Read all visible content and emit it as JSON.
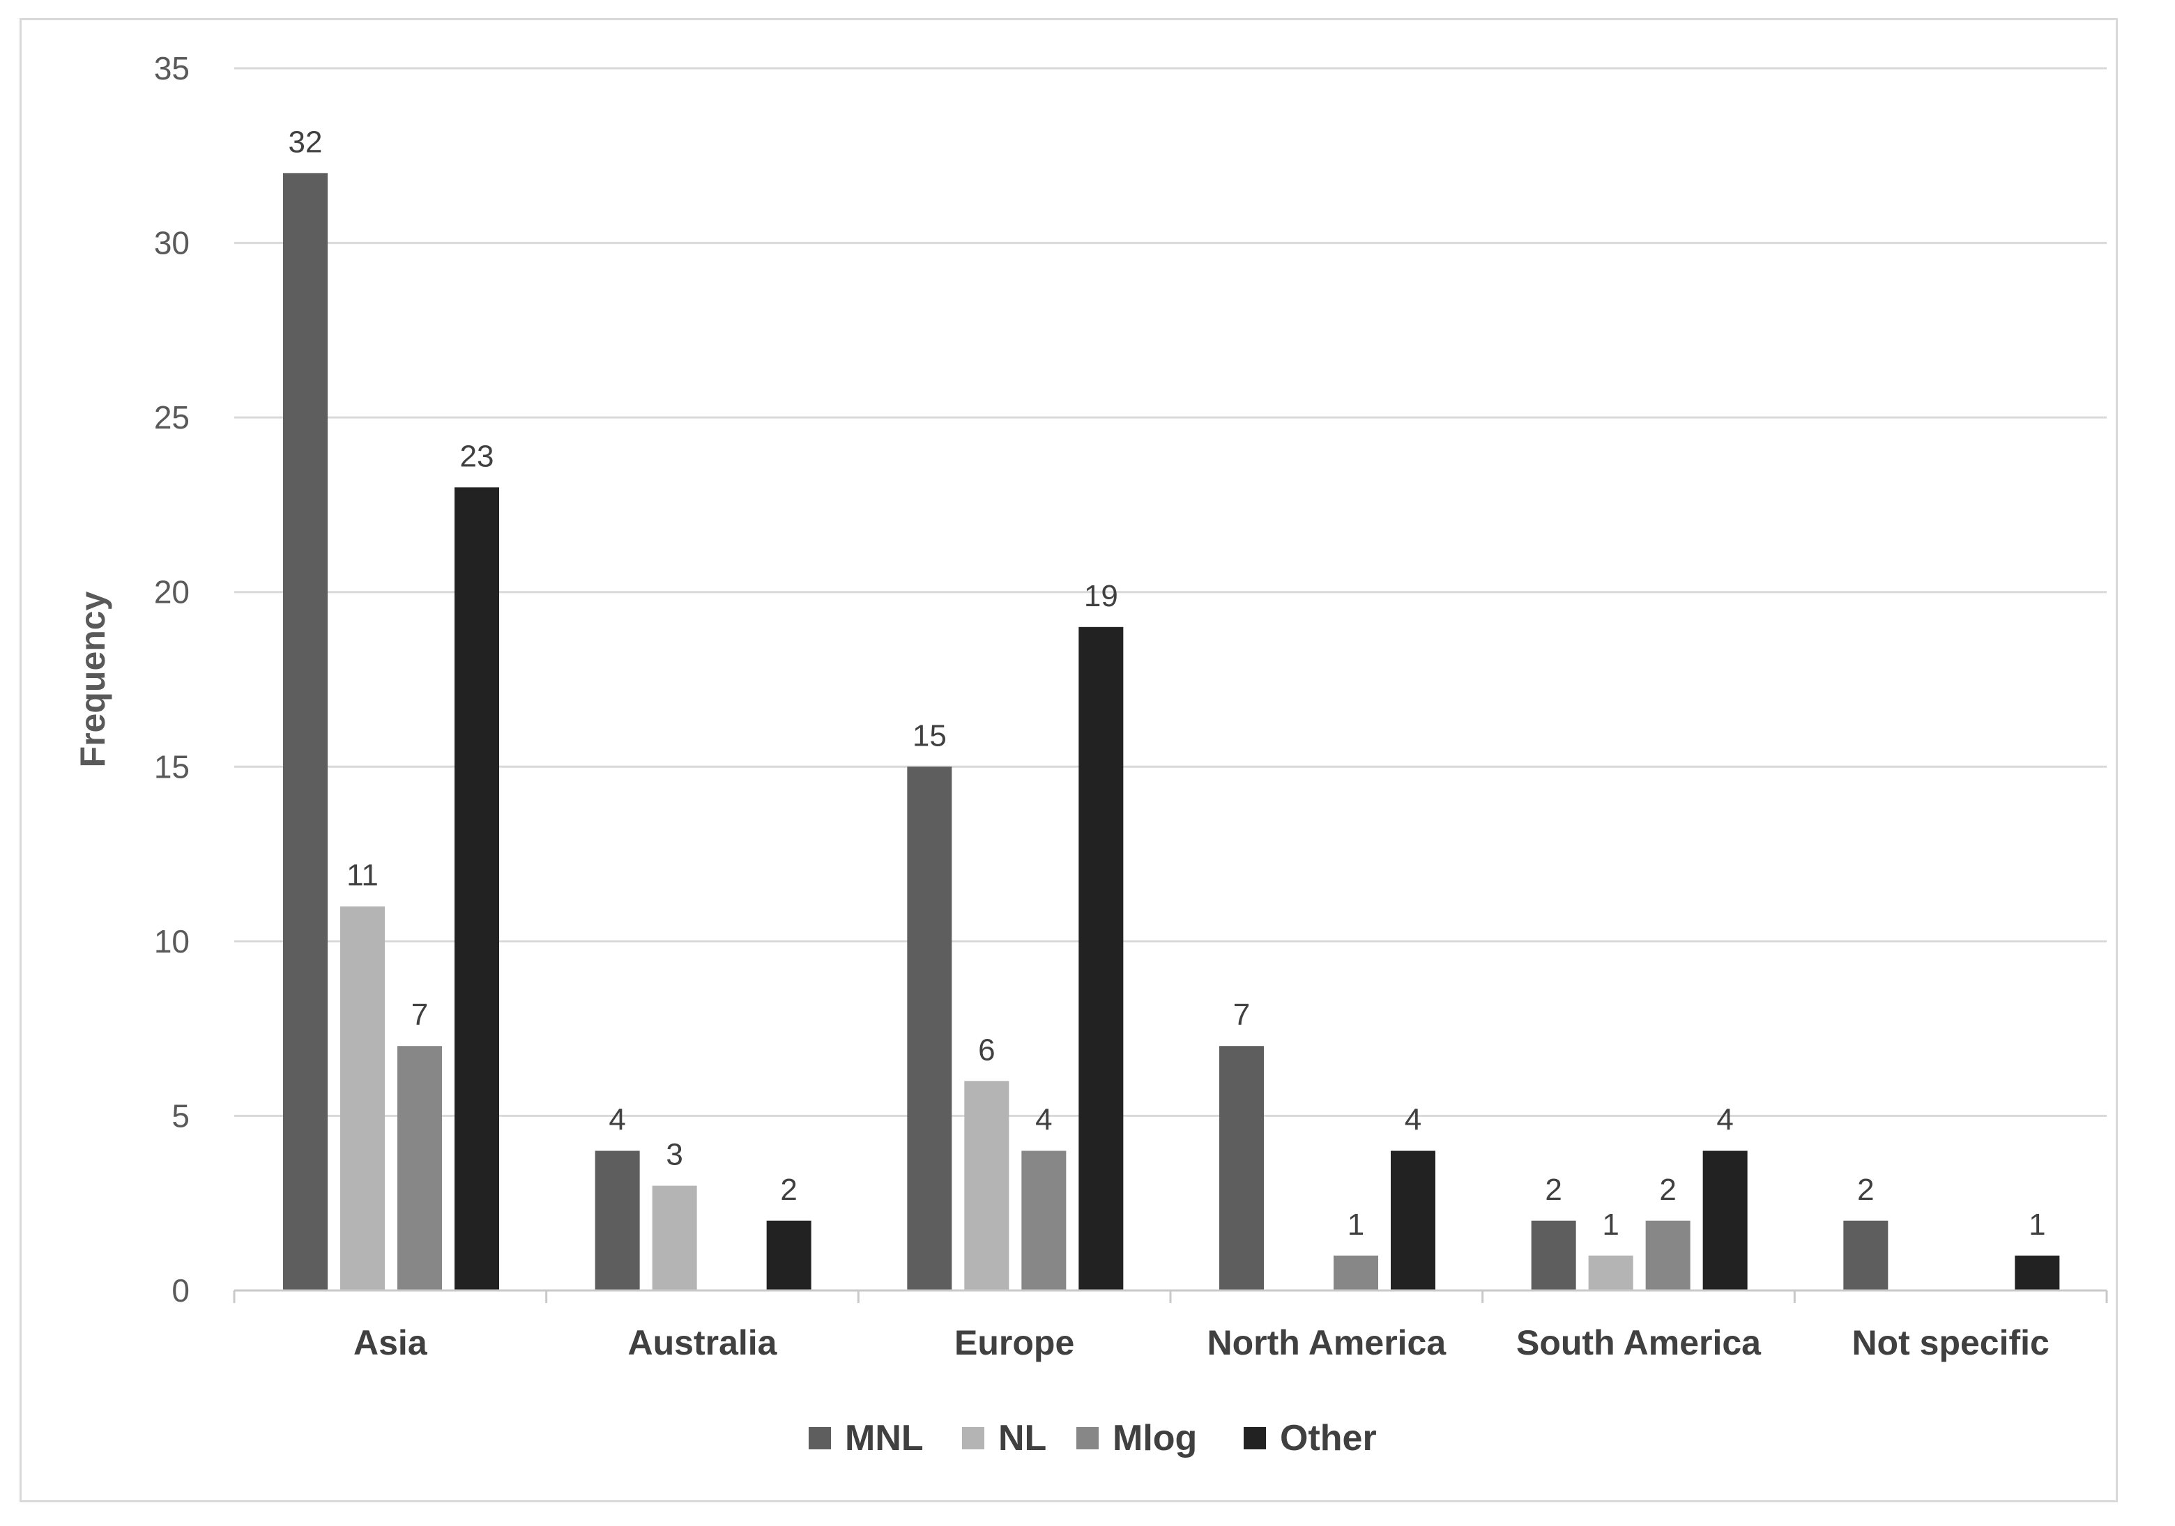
{
  "chart_data": {
    "type": "bar",
    "categories": [
      "Asia",
      "Australia",
      "Europe",
      "North America",
      "South America",
      "Not specific"
    ],
    "series": [
      {
        "name": "MNL",
        "color": "#5e5e5e",
        "values": [
          32,
          4,
          15,
          7,
          2,
          2
        ]
      },
      {
        "name": "NL",
        "color": "#b4b4b4",
        "values": [
          11,
          3,
          6,
          null,
          1,
          null
        ]
      },
      {
        "name": "Mlog",
        "color": "#878787",
        "values": [
          7,
          null,
          4,
          1,
          2,
          null
        ]
      },
      {
        "name": "Other",
        "color": "#222222",
        "values": [
          23,
          2,
          19,
          4,
          4,
          1
        ]
      }
    ],
    "title": "",
    "xlabel": "",
    "ylabel": "Frequency",
    "ylim": [
      0,
      35
    ],
    "yticks": [
      0,
      5,
      10,
      15,
      20,
      25,
      30,
      35
    ],
    "grid": true,
    "legend_position": "bottom"
  }
}
